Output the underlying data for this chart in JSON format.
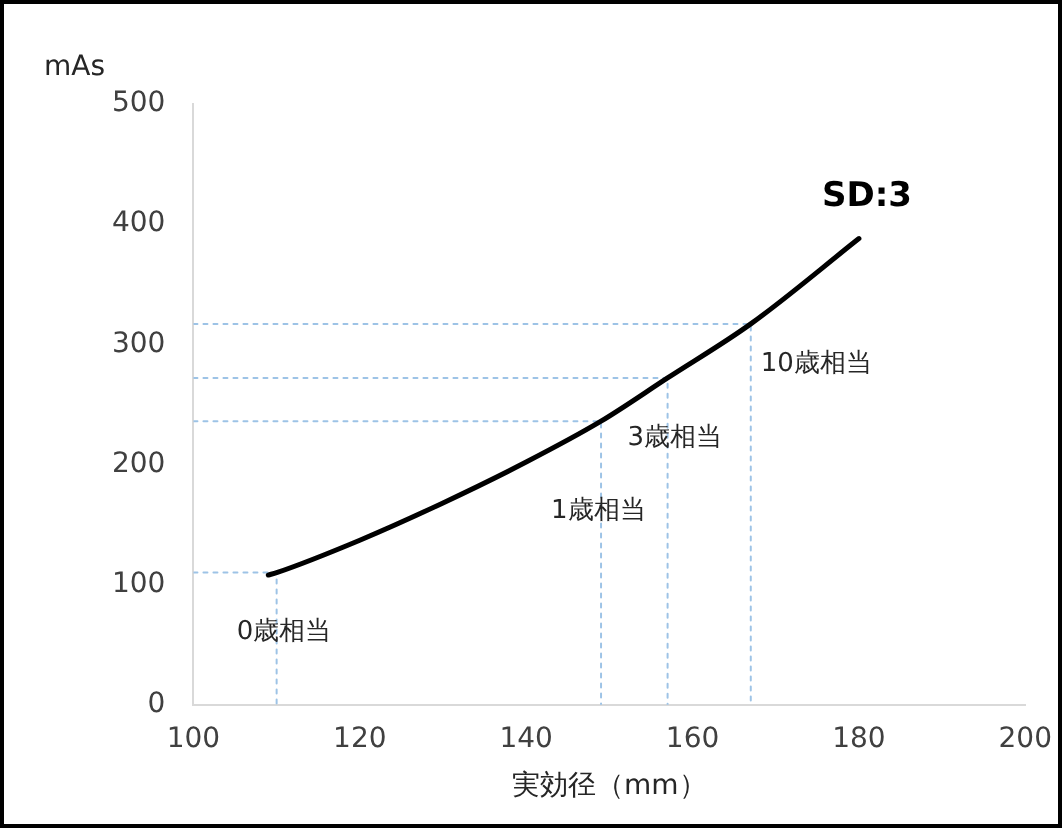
{
  "chart_data": {
    "type": "line",
    "xlabel": "実効径（mm）",
    "ylabel": "mAs",
    "xlim": [
      100,
      200
    ],
    "xticks": [
      100,
      120,
      140,
      160,
      180,
      200
    ],
    "ylim": [
      0,
      500
    ],
    "yticks": [
      0,
      100,
      200,
      300,
      400,
      500
    ],
    "grid": false,
    "legend": false,
    "marker": "none",
    "line_style": "solid",
    "series": [
      {
        "name": "SD:3",
        "color": "#000000",
        "x": [
          109,
          110,
          120,
          130,
          140,
          149,
          157,
          167,
          180
        ],
        "values": [
          108,
          110,
          137,
          168,
          202,
          236,
          272,
          317,
          388
        ]
      },
      {
        "color": "#9dc3e6",
        "line_style": "dotted",
        "x": [
          100,
          110,
          110
        ],
        "values": [
          110,
          110,
          0
        ]
      },
      {
        "color": "#9dc3e6",
        "line_style": "dotted",
        "x": [
          100,
          149,
          149
        ],
        "values": [
          236,
          236,
          0
        ]
      },
      {
        "color": "#9dc3e6",
        "line_style": "dotted",
        "x": [
          100,
          157,
          157
        ],
        "values": [
          272,
          272,
          0
        ]
      },
      {
        "color": "#9dc3e6",
        "line_style": "dotted",
        "x": [
          100,
          167,
          167
        ],
        "values": [
          317,
          317,
          0
        ]
      }
    ],
    "annotations": [
      {
        "text": "0歳相当",
        "x": 110,
        "y": 110
      },
      {
        "text": "1歳相当",
        "x": 149,
        "y": 236
      },
      {
        "text": "3歳相当",
        "x": 157,
        "y": 272
      },
      {
        "text": "10歳相当",
        "x": 167,
        "y": 317
      }
    ]
  }
}
